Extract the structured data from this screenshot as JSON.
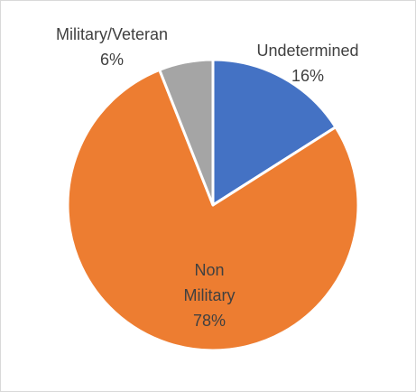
{
  "chart_data": {
    "type": "pie",
    "title": "",
    "start_angle_deg": 0,
    "direction": "clockwise",
    "slices": [
      {
        "name": "Undetermined",
        "value": 16,
        "label": "16%",
        "color": "#4472C4"
      },
      {
        "name": "Non Military",
        "value": 78,
        "label": "78%",
        "color": "#ED7D31"
      },
      {
        "name": "Military/Veteran",
        "value": 6,
        "label": "6%",
        "color": "#A5A5A5"
      }
    ]
  }
}
